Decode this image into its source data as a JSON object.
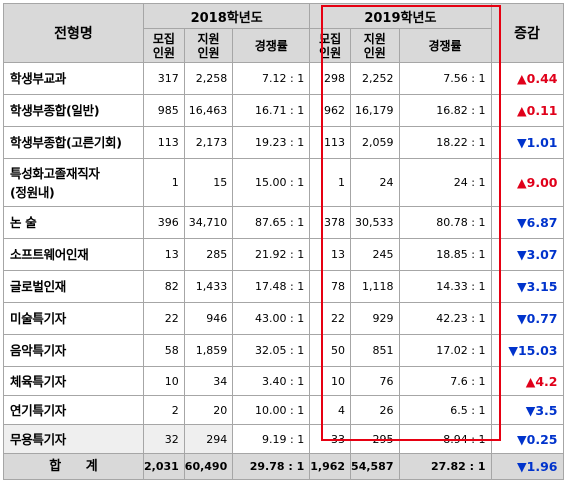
{
  "header": {
    "type_label": "전형명",
    "year_2018": "2018학년도",
    "year_2019": "2019학년도",
    "change_label": "증감",
    "quota_label": "모집\n인원",
    "applicants_label": "지원\n인원",
    "ratio_label": "경쟁률"
  },
  "rows": [
    {
      "name": "학생부교과",
      "q18": "317",
      "a18": "2,258",
      "r18": "7.12 : 1",
      "q19": "298",
      "a19": "2,252",
      "r19": "7.56 : 1",
      "change": "▲0.44",
      "dir": "up"
    },
    {
      "name": "학생부종합(일반)",
      "q18": "985",
      "a18": "16,463",
      "r18": "16.71 : 1",
      "q19": "962",
      "a19": "16,179",
      "r19": "16.82 : 1",
      "change": "▲0.11",
      "dir": "up"
    },
    {
      "name": "학생부종합(고른기회)",
      "q18": "113",
      "a18": "2,173",
      "r18": "19.23 : 1",
      "q19": "113",
      "a19": "2,059",
      "r19": "18.22 : 1",
      "change": "▼1.01",
      "dir": "down"
    },
    {
      "name": "특성화고졸재직자\n(정원내)",
      "q18": "1",
      "a18": "15",
      "r18": "15.00 : 1",
      "q19": "1",
      "a19": "24",
      "r19": "24 : 1",
      "change": "▲9.00",
      "dir": "up"
    },
    {
      "name": "논    술",
      "q18": "396",
      "a18": "34,710",
      "r18": "87.65 : 1",
      "q19": "378",
      "a19": "30,533",
      "r19": "80.78 : 1",
      "change": "▼6.87",
      "dir": "down"
    },
    {
      "name": "소프트웨어인재",
      "q18": "13",
      "a18": "285",
      "r18": "21.92 : 1",
      "q19": "13",
      "a19": "245",
      "r19": "18.85 : 1",
      "change": "▼3.07",
      "dir": "down"
    },
    {
      "name": "글로벌인재",
      "q18": "82",
      "a18": "1,433",
      "r18": "17.48 : 1",
      "q19": "78",
      "a19": "1,118",
      "r19": "14.33 : 1",
      "change": "▼3.15",
      "dir": "down"
    },
    {
      "name": "미술특기자",
      "q18": "22",
      "a18": "946",
      "r18": "43.00 : 1",
      "q19": "22",
      "a19": "929",
      "r19": "42.23 : 1",
      "change": "▼0.77",
      "dir": "down"
    },
    {
      "name": "음악특기자",
      "q18": "58",
      "a18": "1,859",
      "r18": "32.05 : 1",
      "q19": "50",
      "a19": "851",
      "r19": "17.02 : 1",
      "change": "▼15.03",
      "dir": "down"
    },
    {
      "name": "체육특기자",
      "q18": "10",
      "a18": "34",
      "r18": "3.40 : 1",
      "q19": "10",
      "a19": "76",
      "r19": "7.6 : 1",
      "change": "▲4.2",
      "dir": "up"
    },
    {
      "name": "연기특기자",
      "q18": "2",
      "a18": "20",
      "r18": "10.00 : 1",
      "q19": "4",
      "a19": "26",
      "r19": "6.5 : 1",
      "change": "▼3.5",
      "dir": "down"
    },
    {
      "name": "무용특기자",
      "q18": "32",
      "a18": "294",
      "r18": "9.19 : 1",
      "q19": "33",
      "a19": "295",
      "r19": "8.94 : 1",
      "change": "▼0.25",
      "dir": "down",
      "shade": true
    }
  ],
  "total": {
    "name": "합 계",
    "q18": "2,031",
    "a18": "60,490",
    "r18": "29.78 : 1",
    "q19": "1,962",
    "a19": "54,587",
    "r19": "27.82 : 1",
    "change": "▼1.96",
    "dir": "down"
  },
  "colors": {
    "up": "#e0001a",
    "down": "#0033cc",
    "highlight": "#e60012",
    "header_bg": "#d9d9d9"
  }
}
